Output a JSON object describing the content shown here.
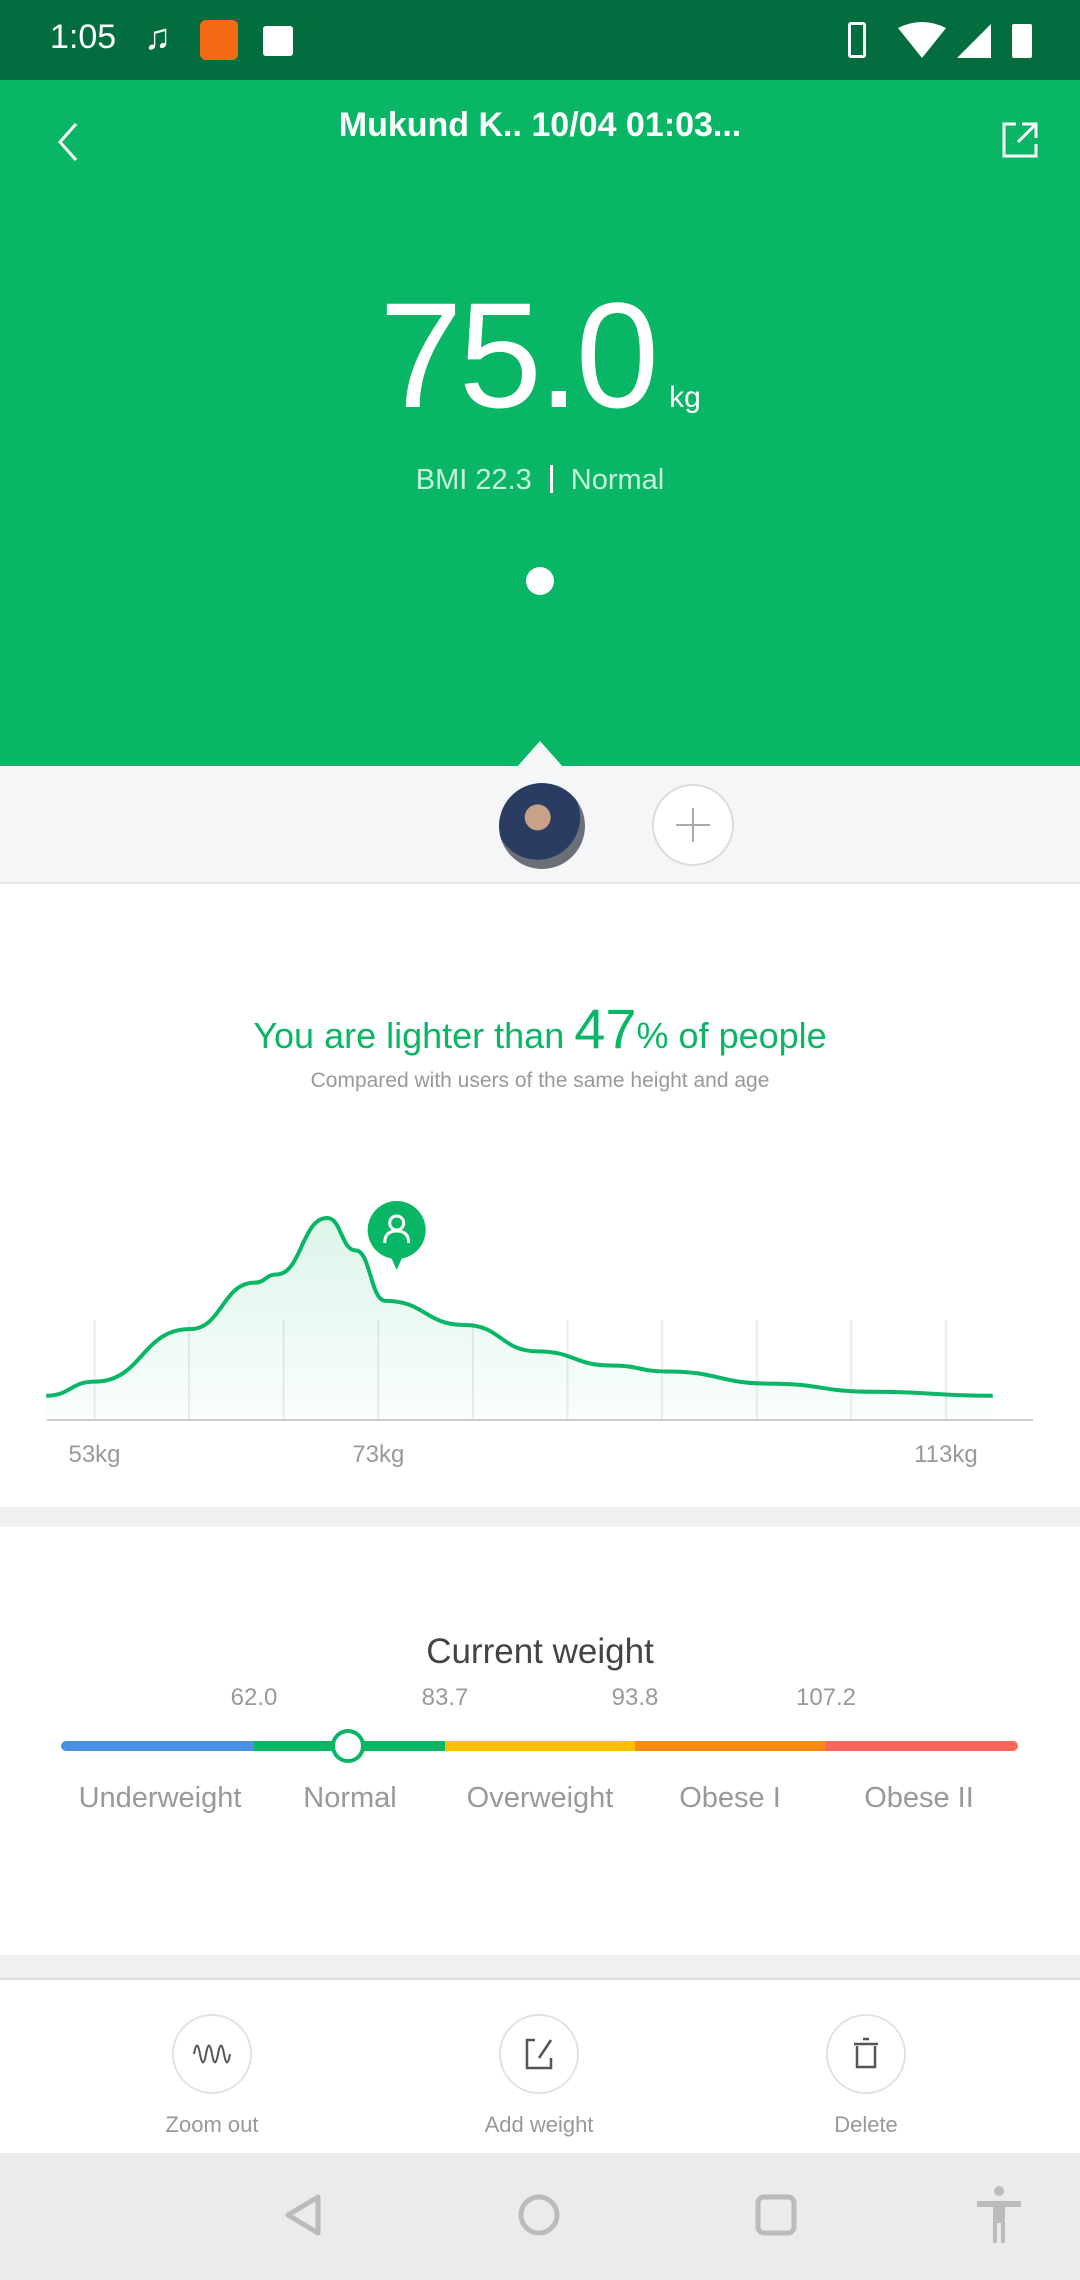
{
  "status_bar": {
    "time": "1:05",
    "icons": [
      "music-note-icon",
      "mi-app-icon",
      "image-icon",
      "vibrate-icon",
      "wifi-icon",
      "signal-icon",
      "battery-icon"
    ]
  },
  "header": {
    "title": "Mukund K.. 10/04 01:03...",
    "weight": "75.0",
    "unit": "kg",
    "bmi": "BMI 22.3",
    "bmi_status": "Normal",
    "page_indicator": {
      "count": 1,
      "active": 0
    }
  },
  "colors": {
    "brand": "#08b665",
    "status_bar": "#036d3f",
    "underweight": "#4a90e2",
    "normal": "#08b665",
    "overweight": "#fdbf00",
    "obese1": "#fd8a14",
    "obese2": "#fd665a"
  },
  "comparison": {
    "prefix": "You are lighter than",
    "percent": "47",
    "suffix": "% of people",
    "subtitle": "Compared with users of the same height and age"
  },
  "chart_data": {
    "type": "area",
    "x_unit": "kg",
    "x_ticks": [
      53,
      73,
      113
    ],
    "x_tick_labels": [
      "53kg",
      "73kg",
      "113kg"
    ],
    "x": [
      49.6,
      53,
      59.7,
      64.3,
      65.8,
      69.4,
      71.4,
      73.5,
      79.1,
      84.2,
      89.4,
      93.4,
      100.6,
      107.8,
      116.3
    ],
    "y": [
      12,
      19,
      45,
      68,
      72,
      100,
      84,
      59,
      47,
      34,
      27,
      24,
      18,
      14,
      12
    ],
    "marker_kg": 75.0,
    "grid": "vertical"
  },
  "current_weight": {
    "title": "Current weight",
    "thresholds": [
      "62.0",
      "83.7",
      "93.8",
      "107.2"
    ],
    "categories": [
      "Underweight",
      "Normal",
      "Overweight",
      "Obese I",
      "Obese II"
    ],
    "position_fraction": 0.3
  },
  "toolbar": {
    "zoom_out": "Zoom out",
    "add_weight": "Add weight",
    "delete": "Delete"
  }
}
